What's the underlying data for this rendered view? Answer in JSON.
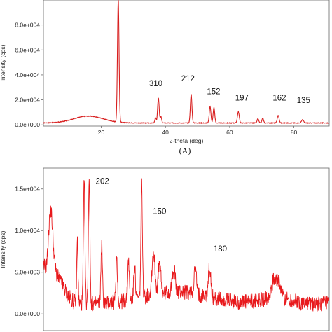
{
  "chart_data": [
    {
      "type": "line",
      "panel_label": "(A)",
      "xlabel": "2-theta (deg)",
      "ylabel": "Intensity (cps)",
      "xlim": [
        2,
        91
      ],
      "ylim": [
        -1000,
        100000
      ],
      "x_ticks": [
        "20",
        "40",
        "60",
        "80"
      ],
      "x_tick_values": [
        20,
        40,
        60,
        80
      ],
      "y_ticks": [
        "0.0e+000",
        "2.0e+004",
        "4.0e+004",
        "6.0e+004",
        "8.0e+004"
      ],
      "y_tick_values": [
        0,
        20000,
        40000,
        60000,
        80000
      ],
      "grid": false,
      "color": "#d81e1e",
      "peaks": [
        {
          "x": 25.3,
          "y": 99000,
          "w": 0.35
        },
        {
          "x": 36.9,
          "y": 4000,
          "w": 0.3
        },
        {
          "x": 37.8,
          "y": 20000,
          "w": 0.35
        },
        {
          "x": 38.6,
          "y": 5000,
          "w": 0.3
        },
        {
          "x": 48.0,
          "y": 23000,
          "w": 0.35
        },
        {
          "x": 53.9,
          "y": 13500,
          "w": 0.35
        },
        {
          "x": 55.1,
          "y": 12500,
          "w": 0.35
        },
        {
          "x": 62.7,
          "y": 9000,
          "w": 0.4
        },
        {
          "x": 68.8,
          "y": 3500,
          "w": 0.35
        },
        {
          "x": 70.3,
          "y": 3800,
          "w": 0.35
        },
        {
          "x": 75.1,
          "y": 6000,
          "w": 0.4
        },
        {
          "x": 82.7,
          "y": 2600,
          "w": 0.45
        }
      ],
      "annotations": [
        {
          "text": "310",
          "x": 37.0,
          "y": 31000
        },
        {
          "text": "212",
          "x": 47.0,
          "y": 35000
        },
        {
          "text": "152",
          "x": 55.0,
          "y": 24500
        },
        {
          "text": "197",
          "x": 63.8,
          "y": 19500
        },
        {
          "text": "162",
          "x": 75.5,
          "y": 19500
        },
        {
          "text": "135",
          "x": 83.0,
          "y": 17500
        }
      ]
    },
    {
      "type": "line",
      "xlabel": "",
      "ylabel": "Intensity (cps)",
      "xlim": [
        10,
        90
      ],
      "ylim": [
        -2000,
        17500
      ],
      "x_ticks": [],
      "y_ticks": [
        "0.0e+000",
        "5.0e+003",
        "1.0e+004",
        "1.5e+004"
      ],
      "y_tick_values": [
        0,
        5000,
        10000,
        15000
      ],
      "grid": false,
      "color": "#e8191c",
      "peaks": [
        {
          "x": 12.0,
          "y": 8000,
          "w": 0.9
        },
        {
          "x": 19.5,
          "y": 7500,
          "w": 0.25
        },
        {
          "x": 21.4,
          "y": 14500,
          "w": 0.3
        },
        {
          "x": 22.8,
          "y": 15200,
          "w": 0.3
        },
        {
          "x": 26.3,
          "y": 7000,
          "w": 0.3
        },
        {
          "x": 30.5,
          "y": 5500,
          "w": 0.3
        },
        {
          "x": 33.8,
          "y": 5000,
          "w": 0.3
        },
        {
          "x": 35.5,
          "y": 4500,
          "w": 0.3
        },
        {
          "x": 37.5,
          "y": 13500,
          "w": 0.3
        },
        {
          "x": 40.8,
          "y": 5000,
          "w": 0.6
        },
        {
          "x": 42.5,
          "y": 3500,
          "w": 0.5
        },
        {
          "x": 46.5,
          "y": 3000,
          "w": 0.5
        },
        {
          "x": 52.5,
          "y": 3000,
          "w": 0.5
        },
        {
          "x": 56.5,
          "y": 3500,
          "w": 0.5
        },
        {
          "x": 75.0,
          "y": 2500,
          "w": 1.5
        }
      ],
      "annotations": [
        {
          "text": "202",
          "x": 26.5,
          "y": 15600
        },
        {
          "text": "150",
          "x": 42.5,
          "y": 12000
        },
        {
          "text": "180",
          "x": 59.5,
          "y": 7500
        }
      ]
    }
  ]
}
